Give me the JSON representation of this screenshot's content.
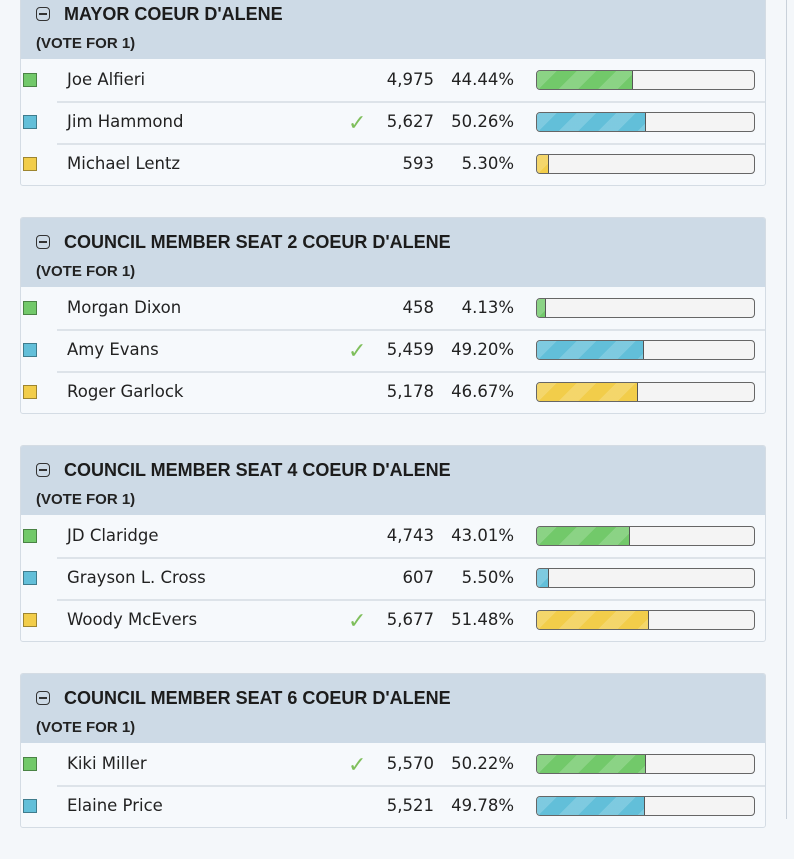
{
  "colors": {
    "green": "#72c96a",
    "blue": "#62bfd9",
    "yellow": "#f2cd4a",
    "check": "#7fbf5c"
  },
  "races": [
    {
      "title": "MAYOR COEUR D'ALENE",
      "vote_for": "(VOTE FOR 1)",
      "candidates": [
        {
          "name": "Joe Alfieri",
          "votes": "4,975",
          "percent": "44.44%",
          "share": 44.44,
          "color": "green",
          "winner": false
        },
        {
          "name": "Jim Hammond",
          "votes": "5,627",
          "percent": "50.26%",
          "share": 50.26,
          "color": "blue",
          "winner": true
        },
        {
          "name": "Michael Lentz",
          "votes": "593",
          "percent": "5.30%",
          "share": 5.3,
          "color": "yellow",
          "winner": false
        }
      ]
    },
    {
      "title": "COUNCIL MEMBER SEAT 2 COEUR D'ALENE",
      "vote_for": "(VOTE FOR 1)",
      "candidates": [
        {
          "name": "Morgan Dixon",
          "votes": "458",
          "percent": "4.13%",
          "share": 4.13,
          "color": "green",
          "winner": false
        },
        {
          "name": "Amy Evans",
          "votes": "5,459",
          "percent": "49.20%",
          "share": 49.2,
          "color": "blue",
          "winner": true
        },
        {
          "name": "Roger Garlock",
          "votes": "5,178",
          "percent": "46.67%",
          "share": 46.67,
          "color": "yellow",
          "winner": false
        }
      ]
    },
    {
      "title": "COUNCIL MEMBER SEAT 4 COEUR D'ALENE",
      "vote_for": "(VOTE FOR 1)",
      "candidates": [
        {
          "name": "JD Claridge",
          "votes": "4,743",
          "percent": "43.01%",
          "share": 43.01,
          "color": "green",
          "winner": false
        },
        {
          "name": "Grayson L. Cross",
          "votes": "607",
          "percent": "5.50%",
          "share": 5.5,
          "color": "blue",
          "winner": false
        },
        {
          "name": "Woody McEvers",
          "votes": "5,677",
          "percent": "51.48%",
          "share": 51.48,
          "color": "yellow",
          "winner": true
        }
      ]
    },
    {
      "title": "COUNCIL MEMBER SEAT 6 COEUR D'ALENE",
      "vote_for": "(VOTE FOR 1)",
      "candidates": [
        {
          "name": "Kiki Miller",
          "votes": "5,570",
          "percent": "50.22%",
          "share": 50.22,
          "color": "green",
          "winner": true
        },
        {
          "name": "Elaine Price",
          "votes": "5,521",
          "percent": "49.78%",
          "share": 49.78,
          "color": "blue",
          "winner": false
        }
      ]
    }
  ]
}
